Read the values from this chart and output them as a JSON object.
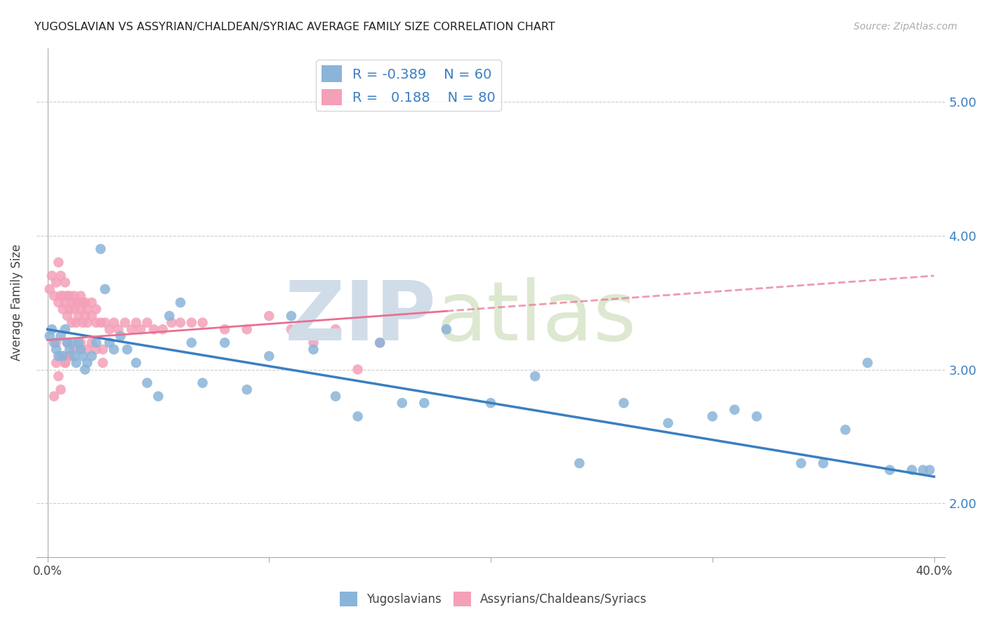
{
  "title": "YUGOSLAVIAN VS ASSYRIAN/CHALDEAN/SYRIAC AVERAGE FAMILY SIZE CORRELATION CHART",
  "source": "Source: ZipAtlas.com",
  "ylabel": "Average Family Size",
  "xlim": [
    0.0,
    0.4
  ],
  "ylim": [
    1.6,
    5.4
  ],
  "yticks_right": [
    2.0,
    3.0,
    4.0,
    5.0
  ],
  "xticks": [
    0.0,
    0.1,
    0.2,
    0.3,
    0.4
  ],
  "blue_R": "-0.389",
  "blue_N": "60",
  "pink_R": "0.188",
  "pink_N": "80",
  "blue_color": "#8ab4d9",
  "pink_color": "#f4a0b8",
  "blue_line_color": "#3a7fc1",
  "pink_line_color": "#e87090",
  "blue_line_x0": 0.0,
  "blue_line_y0": 3.3,
  "blue_line_x1": 0.4,
  "blue_line_y1": 2.2,
  "pink_line_x0": 0.0,
  "pink_line_y0": 3.22,
  "pink_line_x1": 0.4,
  "pink_line_y1": 3.7,
  "blue_scatter_x": [
    0.001,
    0.002,
    0.003,
    0.004,
    0.005,
    0.006,
    0.007,
    0.008,
    0.009,
    0.01,
    0.011,
    0.012,
    0.013,
    0.014,
    0.015,
    0.016,
    0.017,
    0.018,
    0.02,
    0.022,
    0.024,
    0.026,
    0.028,
    0.03,
    0.033,
    0.036,
    0.04,
    0.045,
    0.05,
    0.055,
    0.06,
    0.065,
    0.07,
    0.08,
    0.09,
    0.1,
    0.11,
    0.12,
    0.13,
    0.14,
    0.15,
    0.16,
    0.17,
    0.18,
    0.2,
    0.22,
    0.24,
    0.26,
    0.28,
    0.3,
    0.31,
    0.32,
    0.34,
    0.35,
    0.36,
    0.37,
    0.38,
    0.39,
    0.395,
    0.398
  ],
  "blue_scatter_y": [
    3.25,
    3.3,
    3.2,
    3.15,
    3.1,
    3.25,
    3.1,
    3.3,
    3.2,
    3.15,
    3.2,
    3.1,
    3.05,
    3.2,
    3.15,
    3.1,
    3.0,
    3.05,
    3.1,
    3.2,
    3.9,
    3.6,
    3.2,
    3.15,
    3.25,
    3.15,
    3.05,
    2.9,
    2.8,
    3.4,
    3.5,
    3.2,
    2.9,
    3.2,
    2.85,
    3.1,
    3.4,
    3.15,
    2.8,
    2.65,
    3.2,
    2.75,
    2.75,
    3.3,
    2.75,
    2.95,
    2.3,
    2.75,
    2.6,
    2.65,
    2.7,
    2.65,
    2.3,
    2.3,
    2.55,
    3.05,
    2.25,
    2.25,
    2.25,
    2.25
  ],
  "pink_scatter_x": [
    0.001,
    0.002,
    0.003,
    0.004,
    0.005,
    0.005,
    0.006,
    0.006,
    0.007,
    0.007,
    0.008,
    0.008,
    0.009,
    0.009,
    0.01,
    0.01,
    0.011,
    0.011,
    0.012,
    0.012,
    0.013,
    0.013,
    0.014,
    0.014,
    0.015,
    0.015,
    0.016,
    0.016,
    0.017,
    0.017,
    0.018,
    0.018,
    0.02,
    0.02,
    0.022,
    0.022,
    0.024,
    0.026,
    0.028,
    0.03,
    0.032,
    0.035,
    0.038,
    0.04,
    0.042,
    0.045,
    0.048,
    0.052,
    0.056,
    0.06,
    0.065,
    0.07,
    0.08,
    0.09,
    0.1,
    0.11,
    0.12,
    0.13,
    0.14,
    0.15,
    0.003,
    0.004,
    0.005,
    0.006,
    0.007,
    0.008,
    0.009,
    0.01,
    0.012,
    0.015,
    0.018,
    0.02,
    0.022,
    0.025,
    0.025,
    0.015,
    0.01,
    0.008,
    0.006,
    0.004
  ],
  "pink_scatter_y": [
    3.6,
    3.7,
    3.55,
    3.65,
    3.5,
    3.8,
    3.55,
    3.7,
    3.45,
    3.55,
    3.5,
    3.65,
    3.4,
    3.55,
    3.45,
    3.55,
    3.5,
    3.35,
    3.45,
    3.55,
    3.35,
    3.5,
    3.4,
    3.5,
    3.45,
    3.55,
    3.35,
    3.5,
    3.4,
    3.5,
    3.35,
    3.45,
    3.4,
    3.5,
    3.45,
    3.35,
    3.35,
    3.35,
    3.3,
    3.35,
    3.3,
    3.35,
    3.3,
    3.35,
    3.3,
    3.35,
    3.3,
    3.3,
    3.35,
    3.35,
    3.35,
    3.35,
    3.3,
    3.3,
    3.4,
    3.3,
    3.2,
    3.3,
    3.0,
    3.2,
    2.8,
    3.2,
    2.95,
    2.85,
    3.1,
    3.05,
    3.2,
    3.1,
    3.15,
    3.2,
    3.15,
    3.2,
    3.15,
    3.15,
    3.05,
    3.15,
    3.1,
    3.05,
    3.1,
    3.05
  ]
}
